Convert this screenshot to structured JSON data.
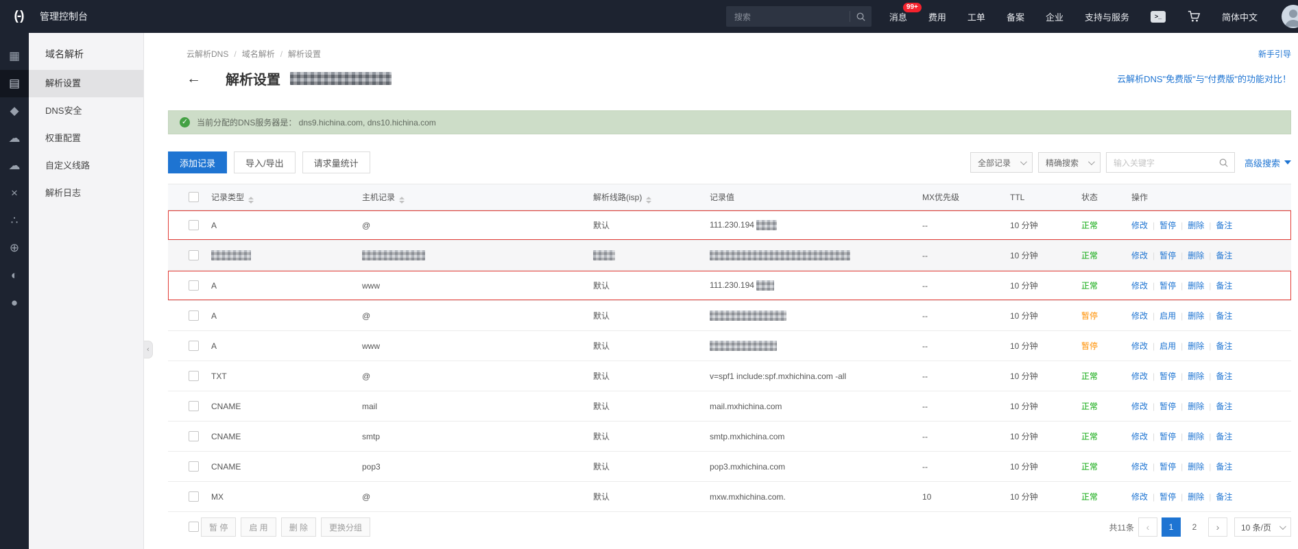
{
  "colors": {
    "accent": "#1e74d2",
    "banner_bg": "#cdddc8",
    "status_normal": "#09a709",
    "status_paused": "#ff8f00",
    "highlight_red": "#e23c36",
    "badge_red": "#f5222d"
  },
  "icons": {
    "logo": "(-)",
    "grid": "▦",
    "server": "▤",
    "shield": "◆",
    "cloud": "☁",
    "cloud2": "☁",
    "close": "×",
    "share": "∴",
    "globe": "⊕",
    "camera": "◐",
    "dot": "●",
    "terminal": ">_",
    "check": "✓",
    "back": "←",
    "prev": "‹",
    "next": "›",
    "collapse": "‹"
  },
  "topbar": {
    "title": "管理控制台",
    "search_placeholder": "搜索",
    "message_badge": "99+",
    "items": [
      "消息",
      "费用",
      "工单",
      "备案",
      "企业",
      "支持与服务"
    ],
    "language": "简体中文"
  },
  "sidebar": {
    "header": "域名解析",
    "items": [
      {
        "label": "解析设置",
        "active": true
      },
      {
        "label": "DNS安全"
      },
      {
        "label": "权重配置"
      },
      {
        "label": "自定义线路"
      },
      {
        "label": "解析日志"
      }
    ]
  },
  "breadcrumb": {
    "items": [
      "云解析DNS",
      "域名解析",
      "解析设置"
    ],
    "guide_link": "新手引导"
  },
  "page": {
    "title": "解析设置",
    "compare_link": "云解析DNS\"免费版\"与\"付费版\"的功能对比！",
    "banner_text": "当前分配的DNS服务器是： dns9.hichina.com, dns10.hichina.com"
  },
  "toolbar": {
    "add": "添加记录",
    "import_export": "导入/导出",
    "stats": "请求量统计",
    "filter_type": "全部记录",
    "filter_mode": "精确搜索",
    "keyword_placeholder": "输入关键字",
    "advanced": "高级搜索"
  },
  "table": {
    "headers": [
      "记录类型",
      "主机记录",
      "解析线路(isp)",
      "记录值",
      "MX优先级",
      "TTL",
      "状态",
      "操作"
    ],
    "rows": [
      {
        "type": "A",
        "host": "@",
        "line": "默认",
        "value": "111.230.194",
        "value_redact": 30,
        "mx": "--",
        "ttl": "10 分钟",
        "status": "正常",
        "status_type": "normal",
        "ops": [
          "修改",
          "暂停",
          "删除",
          "备注"
        ],
        "highlight": true
      },
      {
        "type": "",
        "type_redact": 58,
        "host": "",
        "host_redact": 92,
        "line": "",
        "line_redact": 32,
        "value": "",
        "value_redact": 205,
        "mx": "--",
        "ttl": "10 分钟",
        "status": "正常",
        "status_type": "normal",
        "ops": [
          "修改",
          "暂停",
          "删除",
          "备注"
        ],
        "shaded": true
      },
      {
        "type": "A",
        "host": "www",
        "line": "默认",
        "value": "111.230.194",
        "value_redact": 26,
        "mx": "--",
        "ttl": "10 分钟",
        "status": "正常",
        "status_type": "normal",
        "ops": [
          "修改",
          "暂停",
          "删除",
          "备注"
        ],
        "highlight": true
      },
      {
        "type": "A",
        "host": "@",
        "line": "默认",
        "value": "",
        "value_redact": 112,
        "mx": "--",
        "ttl": "10 分钟",
        "status": "暂停",
        "status_type": "paused",
        "ops": [
          "修改",
          "启用",
          "删除",
          "备注"
        ]
      },
      {
        "type": "A",
        "host": "www",
        "line": "默认",
        "value": "",
        "value_redact": 98,
        "mx": "--",
        "ttl": "10 分钟",
        "status": "暂停",
        "status_type": "paused",
        "ops": [
          "修改",
          "启用",
          "删除",
          "备注"
        ]
      },
      {
        "type": "TXT",
        "host": "@",
        "line": "默认",
        "value": "v=spf1 include:spf.mxhichina.com -all",
        "mx": "--",
        "ttl": "10 分钟",
        "status": "正常",
        "status_type": "normal",
        "ops": [
          "修改",
          "暂停",
          "删除",
          "备注"
        ]
      },
      {
        "type": "CNAME",
        "host": "mail",
        "line": "默认",
        "value": "mail.mxhichina.com",
        "mx": "--",
        "ttl": "10 分钟",
        "status": "正常",
        "status_type": "normal",
        "ops": [
          "修改",
          "暂停",
          "删除",
          "备注"
        ]
      },
      {
        "type": "CNAME",
        "host": "smtp",
        "line": "默认",
        "value": "smtp.mxhichina.com",
        "mx": "--",
        "ttl": "10 分钟",
        "status": "正常",
        "status_type": "normal",
        "ops": [
          "修改",
          "暂停",
          "删除",
          "备注"
        ]
      },
      {
        "type": "CNAME",
        "host": "pop3",
        "line": "默认",
        "value": "pop3.mxhichina.com",
        "mx": "--",
        "ttl": "10 分钟",
        "status": "正常",
        "status_type": "normal",
        "ops": [
          "修改",
          "暂停",
          "删除",
          "备注"
        ]
      },
      {
        "type": "MX",
        "host": "@",
        "line": "默认",
        "value": "mxw.mxhichina.com.",
        "mx": "10",
        "ttl": "10 分钟",
        "status": "正常",
        "status_type": "normal",
        "ops": [
          "修改",
          "暂停",
          "删除",
          "备注"
        ]
      }
    ]
  },
  "footer": {
    "buttons": [
      "暂 停",
      "启 用",
      "删 除",
      "更换分组"
    ],
    "total": "共11条",
    "pages": [
      "1",
      "2"
    ],
    "page_size": "10 条/页"
  }
}
